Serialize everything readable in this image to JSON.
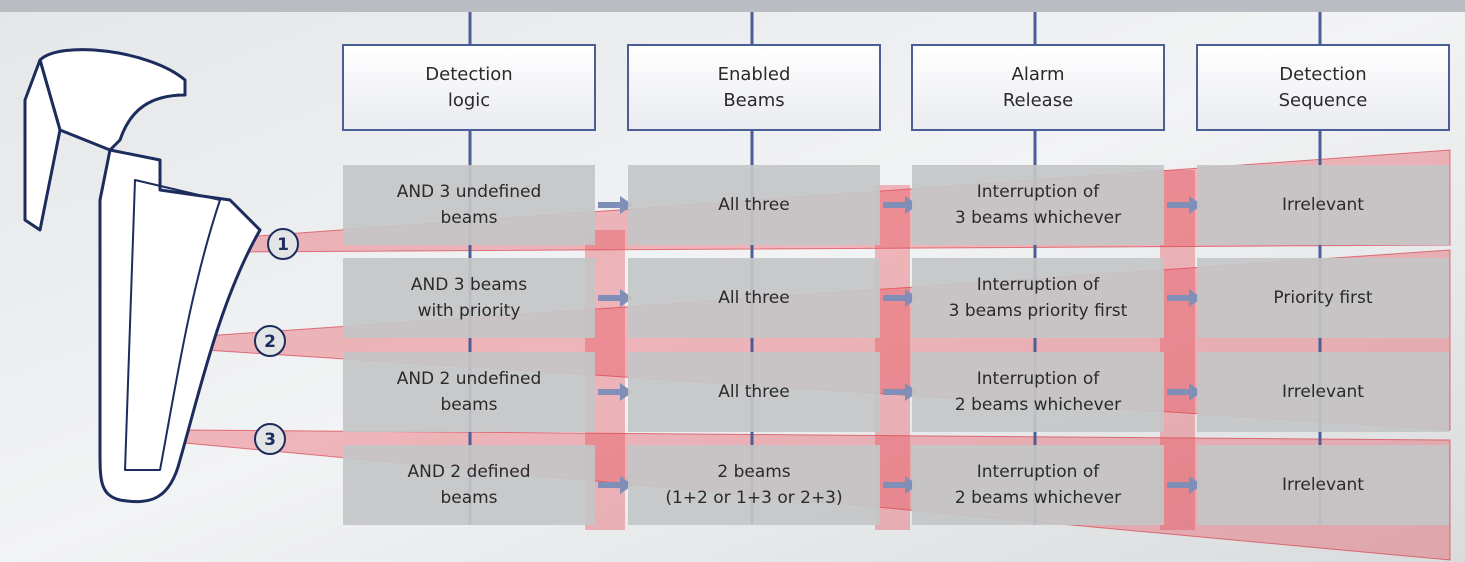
{
  "headers": [
    {
      "lines": [
        "Detection",
        "logic"
      ]
    },
    {
      "lines": [
        "Enabled",
        "Beams"
      ]
    },
    {
      "lines": [
        "Alarm",
        "Release"
      ]
    },
    {
      "lines": [
        "Detection",
        "Sequence"
      ]
    }
  ],
  "rows": [
    [
      {
        "lines": [
          "AND 3 undefined",
          "beams"
        ]
      },
      {
        "lines": [
          "All three"
        ]
      },
      {
        "lines": [
          "Interruption of",
          "3 beams whichever"
        ]
      },
      {
        "lines": [
          "Irrelevant"
        ]
      }
    ],
    [
      {
        "lines": [
          "AND 3 beams",
          "with priority"
        ]
      },
      {
        "lines": [
          "All three"
        ]
      },
      {
        "lines": [
          "Interruption of",
          "3 beams priority first"
        ]
      },
      {
        "lines": [
          "Priority first"
        ]
      }
    ],
    [
      {
        "lines": [
          "AND 2 undefined",
          "beams"
        ]
      },
      {
        "lines": [
          "All three"
        ]
      },
      {
        "lines": [
          "Interruption of",
          "2 beams whichever"
        ]
      },
      {
        "lines": [
          "Irrelevant"
        ]
      }
    ],
    [
      {
        "lines": [
          "AND 2 defined",
          "beams"
        ]
      },
      {
        "lines": [
          "2 beams",
          "(1+2 or 1+3 or 2+3)"
        ]
      },
      {
        "lines": [
          "Interruption of",
          "2 beams whichever"
        ]
      },
      {
        "lines": [
          "Irrelevant"
        ]
      }
    ]
  ],
  "beams": [
    "1",
    "2",
    "3"
  ]
}
